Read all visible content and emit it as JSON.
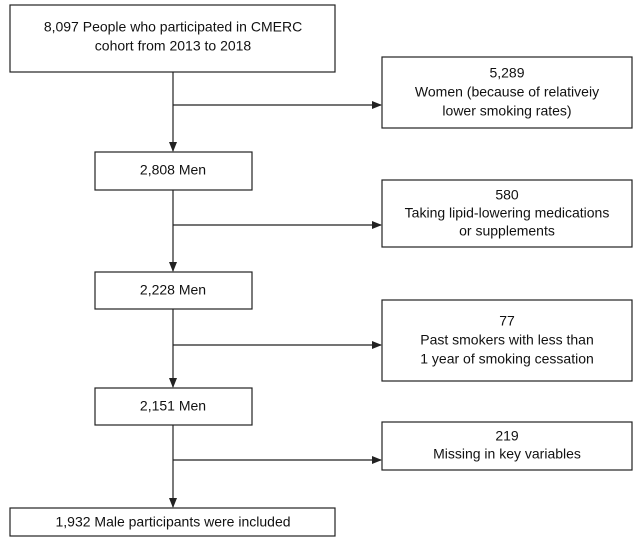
{
  "nodes": [
    {
      "lines": [
        "8,097 People who participated in CMERC",
        "cohort from 2013 to 2018"
      ]
    },
    {
      "lines": [
        "5,289",
        "Women (because of relativeiy",
        "lower smoking rates)"
      ]
    },
    {
      "lines": [
        "2,808 Men"
      ]
    },
    {
      "lines": [
        "580",
        "Taking lipid-lowering medications",
        "or supplements"
      ]
    },
    {
      "lines": [
        "2,228 Men"
      ]
    },
    {
      "lines": [
        "77",
        "Past smokers with less than",
        "1 year of smoking cessation"
      ]
    },
    {
      "lines": [
        "2,151 Men"
      ]
    },
    {
      "lines": [
        "219",
        "Missing in key variables"
      ]
    },
    {
      "lines": [
        "1,932 Male participants were included"
      ]
    }
  ]
}
